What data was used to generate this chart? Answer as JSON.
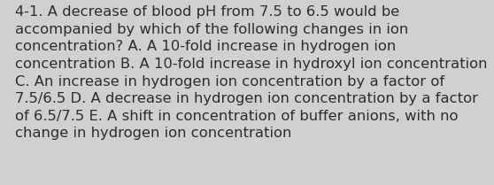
{
  "background_color": "#d0d0d0",
  "text_color": "#2d2d2d",
  "lines": [
    "4-1. A decrease of blood pH from 7.5 to 6.5 would be",
    "accompanied by which of the following changes in ion",
    "concentration? A. A 10-fold increase in hydrogen ion",
    "concentration B. A 10-fold increase in hydroxyl ion concentration",
    "C. An increase in hydrogen ion concentration by a factor of",
    "7.5/6.5 D. A decrease in hydrogen ion concentration by a factor",
    "of 6.5/7.5 E. A shift in concentration of buffer anions, with no",
    "change in hydrogen ion concentration"
  ],
  "font_size": 11.8,
  "font_family": "DejaVu Sans",
  "fig_width": 5.58,
  "fig_height": 2.09,
  "dpi": 100
}
